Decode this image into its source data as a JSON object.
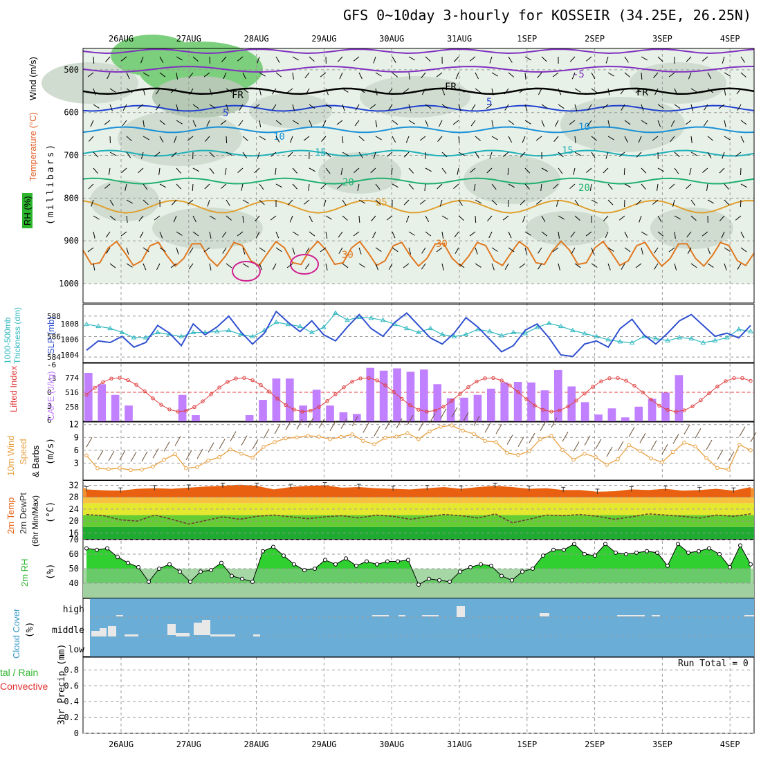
{
  "title": "GFS 0~10day 3-hourly for KOSSEIR (34.25E, 26.25N)",
  "colors": {
    "temp_label": "#e0602a",
    "rh_label": "#2db52d",
    "cape": "#c080ff",
    "lifted": "#e04040",
    "wind10": "#e8a040",
    "slp": "#3050d0",
    "thick": "#30b8c0",
    "cloud": "#6aaed8",
    "precip_total": "#2db52d",
    "precip_conv": "#e03030",
    "temp_fill": "#e86010",
    "rh_fill": "#30d030"
  },
  "panels": {
    "upper": {
      "labels": [
        "RH (%)",
        "Temperature (°C)",
        "Wind (m/s)"
      ],
      "yaxis": "(millibars)",
      "ticks": [
        "500",
        "600",
        "700",
        "800",
        "900",
        "1000"
      ],
      "freezing_label": "FR"
    },
    "thick_slp": {
      "left_label": "1000-500mb Thickness (dm)",
      "right_label": "SLP (mb)",
      "left_ticks": [
        "588",
        "586",
        "584"
      ],
      "right_ticks": [
        "1008",
        "1006",
        "1004"
      ]
    },
    "cape": {
      "left_label": "Lifted Index",
      "right_label": "CAPE (J/kg)",
      "left_ticks": [
        "-6",
        "-3",
        "0",
        "3",
        "6"
      ],
      "right_ticks": [
        "774",
        "516",
        "258"
      ]
    },
    "wind10": {
      "label1": "10m Wind",
      "label2": "Speed",
      "label3": "& Barbs",
      "unit": "(m/s)",
      "ticks": [
        "12",
        "9",
        "6",
        "3"
      ]
    },
    "temp2m": {
      "label1": "2m Temp",
      "label2": "2m DewPt",
      "label3": "(6hr Min/Max)",
      "unit": "(°C)",
      "ticks": [
        "32",
        "28",
        "24",
        "20",
        "16"
      ]
    },
    "rh2m": {
      "label": "2m RH",
      "unit": "(%)",
      "ticks": [
        "70",
        "60",
        "50",
        "40"
      ]
    },
    "cloud": {
      "label": "Cloud Cover",
      "unit": "(%)",
      "levels": [
        "high",
        "middle",
        "low"
      ]
    },
    "precip": {
      "label1": "tal / Rain",
      "label2": "Convective",
      "ylabel": "3hr Precip (mm)",
      "run_total": "Run Total = 0",
      "ticks": [
        "0.8",
        "0.6",
        "0.4",
        "0.2",
        "0"
      ]
    }
  },
  "chart_data": {
    "type": "line",
    "dates": [
      "26AUG",
      "27AUG",
      "28AUG",
      "29AUG",
      "30AUG",
      "31AUG",
      "1SEP",
      "2SEP",
      "3SEP",
      "4SEP"
    ],
    "slp_mb": [
      1004.6,
      1005.8,
      1005.6,
      1006.4,
      1005.0,
      1005.6,
      1007.8,
      1006.8,
      1005.2,
      1008.0,
      1006.6,
      1007.6,
      1009.0,
      1007.0,
      1005.4,
      1006.8,
      1009.6,
      1008.2,
      1007.0,
      1008.4,
      1006.6,
      1005.8,
      1007.6,
      1009.2,
      1007.4,
      1006.4,
      1008.2,
      1009.4,
      1007.8,
      1006.2,
      1005.4,
      1006.8,
      1008.8,
      1007.6,
      1006.0,
      1004.4,
      1005.2,
      1007.2,
      1008.0,
      1006.2,
      1004.0,
      1003.8,
      1005.4,
      1005.8,
      1005.0,
      1007.4,
      1008.6,
      1006.6,
      1005.4,
      1006.8,
      1008.4,
      1009.2,
      1007.8,
      1006.4,
      1006.8,
      1006.2,
      1007.8
    ],
    "thickness_dm": [
      587.2,
      587.0,
      586.8,
      586.4,
      585.9,
      585.9,
      586.4,
      586.2,
      586.0,
      586.4,
      586.4,
      586.5,
      586.6,
      586.2,
      586.0,
      586.6,
      587.4,
      587.2,
      587.0,
      586.4,
      586.9,
      588.3,
      587.6,
      587.9,
      587.8,
      587.6,
      587.2,
      586.8,
      586.4,
      586.8,
      586.2,
      586.0,
      586.2,
      586.7,
      586.5,
      586.1,
      586.4,
      586.3,
      586.9,
      587.3,
      587.0,
      586.6,
      586.3,
      586.0,
      585.7,
      585.5,
      585.4,
      586.0,
      585.8,
      585.6,
      585.9,
      585.8,
      585.4,
      585.6,
      585.9,
      586.7,
      586.5
    ],
    "cape_jkg": [
      860,
      660,
      470,
      280,
      0,
      0,
      0,
      470,
      110,
      0,
      0,
      0,
      110,
      380,
      760,
      760,
      280,
      560,
      280,
      160,
      130,
      950,
      900,
      940,
      880,
      920,
      660,
      410,
      420,
      470,
      580,
      690,
      700,
      690,
      550,
      910,
      620,
      340,
      120,
      230,
      70,
      260,
      400,
      510,
      820,
      0,
      0,
      0,
      0,
      0
    ],
    "lifted_index": [
      1,
      0,
      -1,
      -2,
      -3,
      -2,
      -1,
      0,
      1,
      2,
      3,
      3,
      2,
      1,
      0,
      -1,
      -2,
      -3,
      -4,
      -3,
      -2
    ],
    "wind10_speed_ms": [
      4.8,
      1.8,
      1.6,
      1.8,
      1.4,
      1.5,
      2.2,
      3.8,
      5.1,
      1.8,
      2.1,
      3.6,
      4.4,
      6.2,
      5.2,
      4.3,
      6.8,
      7.9,
      8.8,
      9.0,
      9.4,
      9.2,
      8.6,
      9.1,
      9.7,
      8.2,
      7.4,
      8.9,
      9.2,
      10.0,
      8.6,
      10.4,
      11.5,
      11.8,
      10.6,
      9.8,
      8.2,
      7.9,
      5.4,
      4.9,
      5.8,
      8.6,
      9.4,
      6.1,
      3.8,
      5.2,
      4.4,
      2.6,
      3.9,
      7.2,
      5.8,
      4.1,
      3.2,
      5.6,
      7.8,
      6.9,
      4.2,
      1.9,
      1.5,
      7.3,
      6.0
    ],
    "temp2m_c": [
      30.6,
      30.3,
      30.2,
      30.8,
      31.0,
      30.8,
      31.2,
      31.6,
      31.8,
      32.2,
      31.8,
      30.6,
      31.4,
      31.8,
      32.0,
      31.2,
      31.4,
      31.0,
      30.8,
      30.6,
      31.0,
      31.4,
      30.8,
      31.4,
      31.8,
      31.4,
      30.8,
      31.0,
      30.4,
      30.4,
      29.8,
      30.0,
      30.6,
      30.4,
      30.8,
      30.2,
      30.4,
      30.8,
      30.2,
      31.4
    ],
    "dewpt2m_c": [
      22.2,
      21.8,
      20.4,
      20.0,
      22.0,
      20.6,
      19.0,
      20.2,
      21.4,
      20.6,
      21.6,
      22.0,
      21.4,
      20.8,
      21.4,
      21.8,
      21.0,
      22.0,
      21.6,
      20.6,
      21.4,
      22.2,
      21.8,
      21.0,
      22.4,
      19.4,
      20.6,
      22.0,
      21.8,
      22.2,
      21.6,
      20.6,
      21.4,
      22.4,
      22.0,
      21.6,
      21.0,
      22.0,
      21.6,
      22.4
    ],
    "rh2m_pct": [
      64,
      63,
      64,
      58,
      54,
      51,
      41,
      50,
      53,
      48,
      41,
      48,
      49,
      54,
      45,
      43,
      41,
      62,
      65,
      59,
      53,
      49,
      50,
      56,
      53,
      57,
      52,
      55,
      53,
      55,
      55,
      56,
      39,
      43,
      42,
      41,
      48,
      51,
      53,
      52,
      45,
      42,
      48,
      50,
      59,
      63,
      63,
      67,
      60,
      59,
      67,
      61,
      60,
      61,
      62,
      61,
      52,
      67,
      61,
      62,
      64,
      60,
      51,
      66,
      53
    ],
    "upper_contours": [
      {
        "label": "FR",
        "level_mb": 550
      },
      {
        "label": "5",
        "level_mb": 590
      },
      {
        "label": "10",
        "level_mb": 640
      },
      {
        "label": "15",
        "level_mb": 695
      },
      {
        "label": "20",
        "level_mb": 760
      },
      {
        "label": "25",
        "level_mb": 820
      },
      {
        "label": "30",
        "level_mb": 930
      }
    ]
  }
}
